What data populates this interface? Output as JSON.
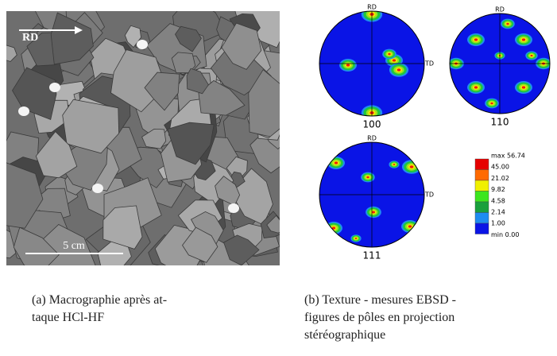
{
  "figure_a": {
    "direction_label": "RD",
    "scale_label": "5 cm",
    "caption": [
      "(a) Macrographie après at-",
      "taque HCl-HF"
    ]
  },
  "figure_b": {
    "pole_figures": [
      {
        "name": "100",
        "top": "RD",
        "right": "TD"
      },
      {
        "name": "110",
        "top": "RD"
      },
      {
        "name": "111",
        "top": "RD",
        "right": "TD"
      }
    ],
    "legend": [
      "max 56.74",
      "45.00",
      "21.02",
      "9.82",
      "4.58",
      "2.14",
      "1.00",
      "min 0.00"
    ],
    "caption": [
      "(b) Texture - mesures EBSD -",
      "figures de pôles en projection",
      "stéréographique"
    ]
  }
}
